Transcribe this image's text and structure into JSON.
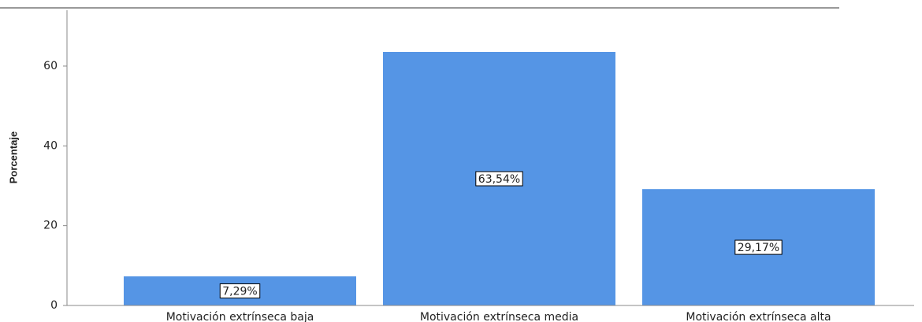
{
  "chart_data": {
    "type": "bar",
    "ylabel": "Porcentaje",
    "categories": [
      "Motivación extrínseca baja",
      "Motivación extrínseca media",
      "Motivación extrínseca alta"
    ],
    "values": [
      7.29,
      63.54,
      29.17
    ],
    "value_labels": [
      "7,29%",
      "63,54%",
      "29,17%"
    ],
    "color": "#5595e5",
    "ylim": [
      0,
      74
    ],
    "yticks": [
      0,
      20,
      40,
      60
    ],
    "grid": false
  }
}
